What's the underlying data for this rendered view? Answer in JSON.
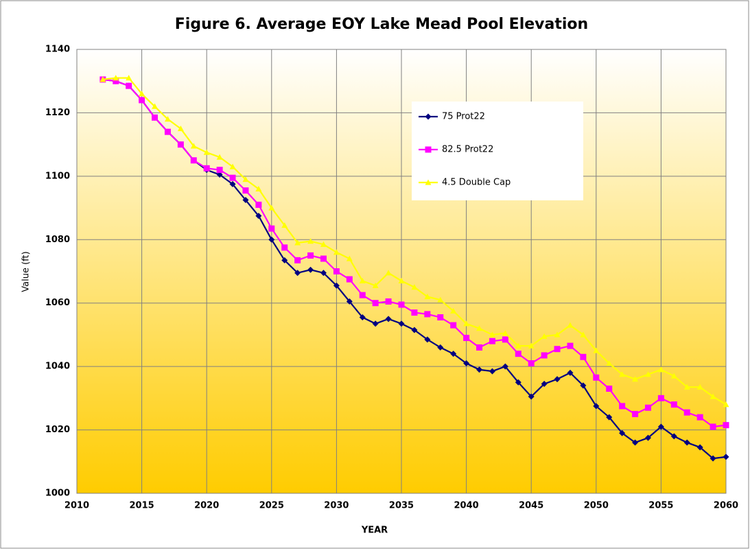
{
  "chart_data": {
    "type": "line",
    "title": "Figure 6. Average EOY Lake Mead Pool Elevation",
    "xlabel": "YEAR",
    "ylabel": "Value (ft)",
    "x": [
      2012,
      2013,
      2014,
      2015,
      2016,
      2017,
      2018,
      2019,
      2020,
      2021,
      2022,
      2023,
      2024,
      2025,
      2026,
      2027,
      2028,
      2029,
      2030,
      2031,
      2032,
      2033,
      2034,
      2035,
      2036,
      2037,
      2038,
      2039,
      2040,
      2041,
      2042,
      2043,
      2044,
      2045,
      2046,
      2047,
      2048,
      2049,
      2050,
      2051,
      2052,
      2053,
      2054,
      2055,
      2056,
      2057,
      2058,
      2059,
      2060
    ],
    "series": [
      {
        "name": "75 Prot22",
        "color": "#000080",
        "marker": "diamond",
        "values": [
          1130.5,
          1130,
          1128.5,
          1124,
          1118.5,
          1114,
          1110,
          1105,
          1102,
          1100.5,
          1097.5,
          1092.5,
          1087.5,
          1080,
          1073.5,
          1069.5,
          1070.5,
          1069.5,
          1065.5,
          1060.5,
          1055.5,
          1053.5,
          1055,
          1053.5,
          1051.5,
          1048.5,
          1046,
          1044,
          1041,
          1039,
          1038.5,
          1040,
          1035,
          1030.5,
          1034.5,
          1036,
          1038,
          1034,
          1027.5,
          1024,
          1019,
          1016,
          1017.5,
          1021,
          1018,
          1016,
          1014.5,
          1011,
          1011.5
        ]
      },
      {
        "name": "82.5 Prot22",
        "color": "#ff00ff",
        "marker": "square",
        "values": [
          1130.5,
          1130,
          1128.5,
          1124,
          1118.5,
          1114,
          1110,
          1105,
          1102.5,
          1102,
          1099.5,
          1095.5,
          1091,
          1083.5,
          1077.5,
          1073.5,
          1075,
          1074,
          1070,
          1067.5,
          1062.5,
          1060,
          1060.5,
          1059.5,
          1057,
          1056.5,
          1055.5,
          1053,
          1049,
          1046,
          1048,
          1048.5,
          1044,
          1041,
          1043.5,
          1045.5,
          1046.5,
          1043,
          1036.5,
          1033,
          1027.5,
          1025,
          1027,
          1030,
          1028,
          1025.5,
          1024,
          1021,
          1021.5
        ]
      },
      {
        "name": "4.5 Double Cap",
        "color": "#ffff00",
        "marker": "triangle",
        "values": [
          1130.5,
          1131,
          1131,
          1126,
          1122,
          1118,
          1115,
          1109.5,
          1107.5,
          1106,
          1103,
          1099,
          1096,
          1090,
          1084.5,
          1079,
          1079.5,
          1078.5,
          1076,
          1074,
          1067,
          1065.5,
          1069.5,
          1067,
          1065,
          1062,
          1061,
          1057.5,
          1053.5,
          1052,
          1050,
          1050.5,
          1046.5,
          1046.5,
          1049.5,
          1050,
          1053,
          1050,
          1045,
          1041,
          1037.5,
          1036,
          1037.5,
          1039,
          1037,
          1033.5,
          1033.5,
          1030.5,
          1028
        ]
      }
    ],
    "xlim": [
      2010,
      2060
    ],
    "xticks": [
      2010,
      2015,
      2020,
      2025,
      2030,
      2035,
      2040,
      2045,
      2050,
      2055,
      2060
    ],
    "ylim": [
      1000,
      1140
    ],
    "yticks": [
      1000,
      1020,
      1040,
      1060,
      1080,
      1100,
      1120,
      1140
    ],
    "grid": true,
    "legend_position": "upper right"
  }
}
